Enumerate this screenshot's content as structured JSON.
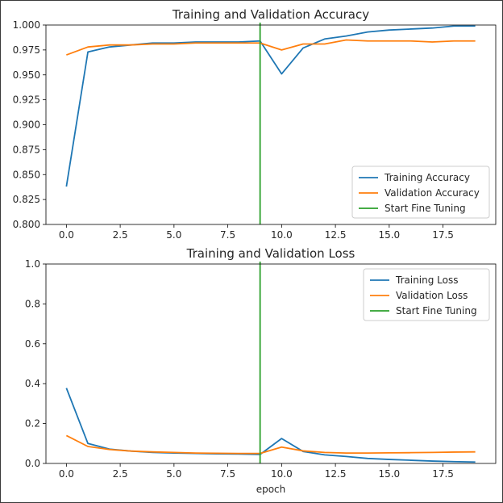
{
  "chart_data": [
    {
      "type": "line",
      "title": "Training and Validation Accuracy",
      "xlabel": "",
      "ylabel": "",
      "xlim": [
        -0.95,
        19.95
      ],
      "ylim": [
        0.8,
        1.0
      ],
      "xticks": [
        0.0,
        2.5,
        5.0,
        7.5,
        10.0,
        12.5,
        15.0,
        17.5
      ],
      "xtick_labels": [
        "0.0",
        "2.5",
        "5.0",
        "7.5",
        "10.0",
        "12.5",
        "15.0",
        "17.5"
      ],
      "yticks": [
        0.8,
        0.825,
        0.85,
        0.875,
        0.9,
        0.925,
        0.95,
        0.975,
        1.0
      ],
      "ytick_labels": [
        "0.800",
        "0.825",
        "0.850",
        "0.875",
        "0.900",
        "0.925",
        "0.950",
        "0.975",
        "1.000"
      ],
      "legend_position": "lower-right",
      "vline": {
        "x": 9,
        "name": "Start Fine Tuning",
        "color": "#2ca02c"
      },
      "x": [
        0,
        1,
        2,
        3,
        4,
        5,
        6,
        7,
        8,
        9,
        10,
        11,
        12,
        13,
        14,
        15,
        16,
        17,
        18,
        19
      ],
      "series": [
        {
          "name": "Training Accuracy",
          "color": "#1f77b4",
          "values": [
            0.838,
            0.973,
            0.978,
            0.98,
            0.982,
            0.982,
            0.983,
            0.983,
            0.983,
            0.984,
            0.951,
            0.977,
            0.986,
            0.989,
            0.993,
            0.995,
            0.996,
            0.997,
            0.999,
            0.999
          ]
        },
        {
          "name": "Validation Accuracy",
          "color": "#ff7f0e",
          "values": [
            0.97,
            0.978,
            0.98,
            0.98,
            0.981,
            0.981,
            0.982,
            0.982,
            0.982,
            0.982,
            0.975,
            0.981,
            0.981,
            0.985,
            0.984,
            0.984,
            0.984,
            0.983,
            0.984,
            0.984
          ]
        }
      ],
      "legend_items": [
        "Training Accuracy",
        "Validation Accuracy",
        "Start Fine Tuning"
      ]
    },
    {
      "type": "line",
      "title": "Training and Validation Loss",
      "xlabel": "epoch",
      "ylabel": "",
      "xlim": [
        -0.95,
        19.95
      ],
      "ylim": [
        0.0,
        1.0
      ],
      "xticks": [
        0.0,
        2.5,
        5.0,
        7.5,
        10.0,
        12.5,
        15.0,
        17.5
      ],
      "xtick_labels": [
        "0.0",
        "2.5",
        "5.0",
        "7.5",
        "10.0",
        "12.5",
        "15.0",
        "17.5"
      ],
      "yticks": [
        0.0,
        0.2,
        0.4,
        0.6,
        0.8,
        1.0
      ],
      "ytick_labels": [
        "0.0",
        "0.2",
        "0.4",
        "0.6",
        "0.8",
        "1.0"
      ],
      "legend_position": "upper-right",
      "vline": {
        "x": 9,
        "name": "Start Fine Tuning",
        "color": "#2ca02c"
      },
      "x": [
        0,
        1,
        2,
        3,
        4,
        5,
        6,
        7,
        8,
        9,
        10,
        11,
        12,
        13,
        14,
        15,
        16,
        17,
        18,
        19
      ],
      "series": [
        {
          "name": "Training Loss",
          "color": "#1f77b4",
          "values": [
            0.378,
            0.1,
            0.072,
            0.062,
            0.055,
            0.052,
            0.05,
            0.048,
            0.047,
            0.045,
            0.125,
            0.06,
            0.043,
            0.035,
            0.025,
            0.02,
            0.016,
            0.012,
            0.009,
            0.007
          ]
        },
        {
          "name": "Validation Loss",
          "color": "#ff7f0e",
          "values": [
            0.14,
            0.085,
            0.07,
            0.062,
            0.058,
            0.055,
            0.052,
            0.051,
            0.05,
            0.05,
            0.082,
            0.063,
            0.055,
            0.052,
            0.052,
            0.053,
            0.054,
            0.055,
            0.057,
            0.058
          ]
        }
      ],
      "legend_items": [
        "Training Loss",
        "Validation Loss",
        "Start Fine Tuning"
      ]
    }
  ]
}
